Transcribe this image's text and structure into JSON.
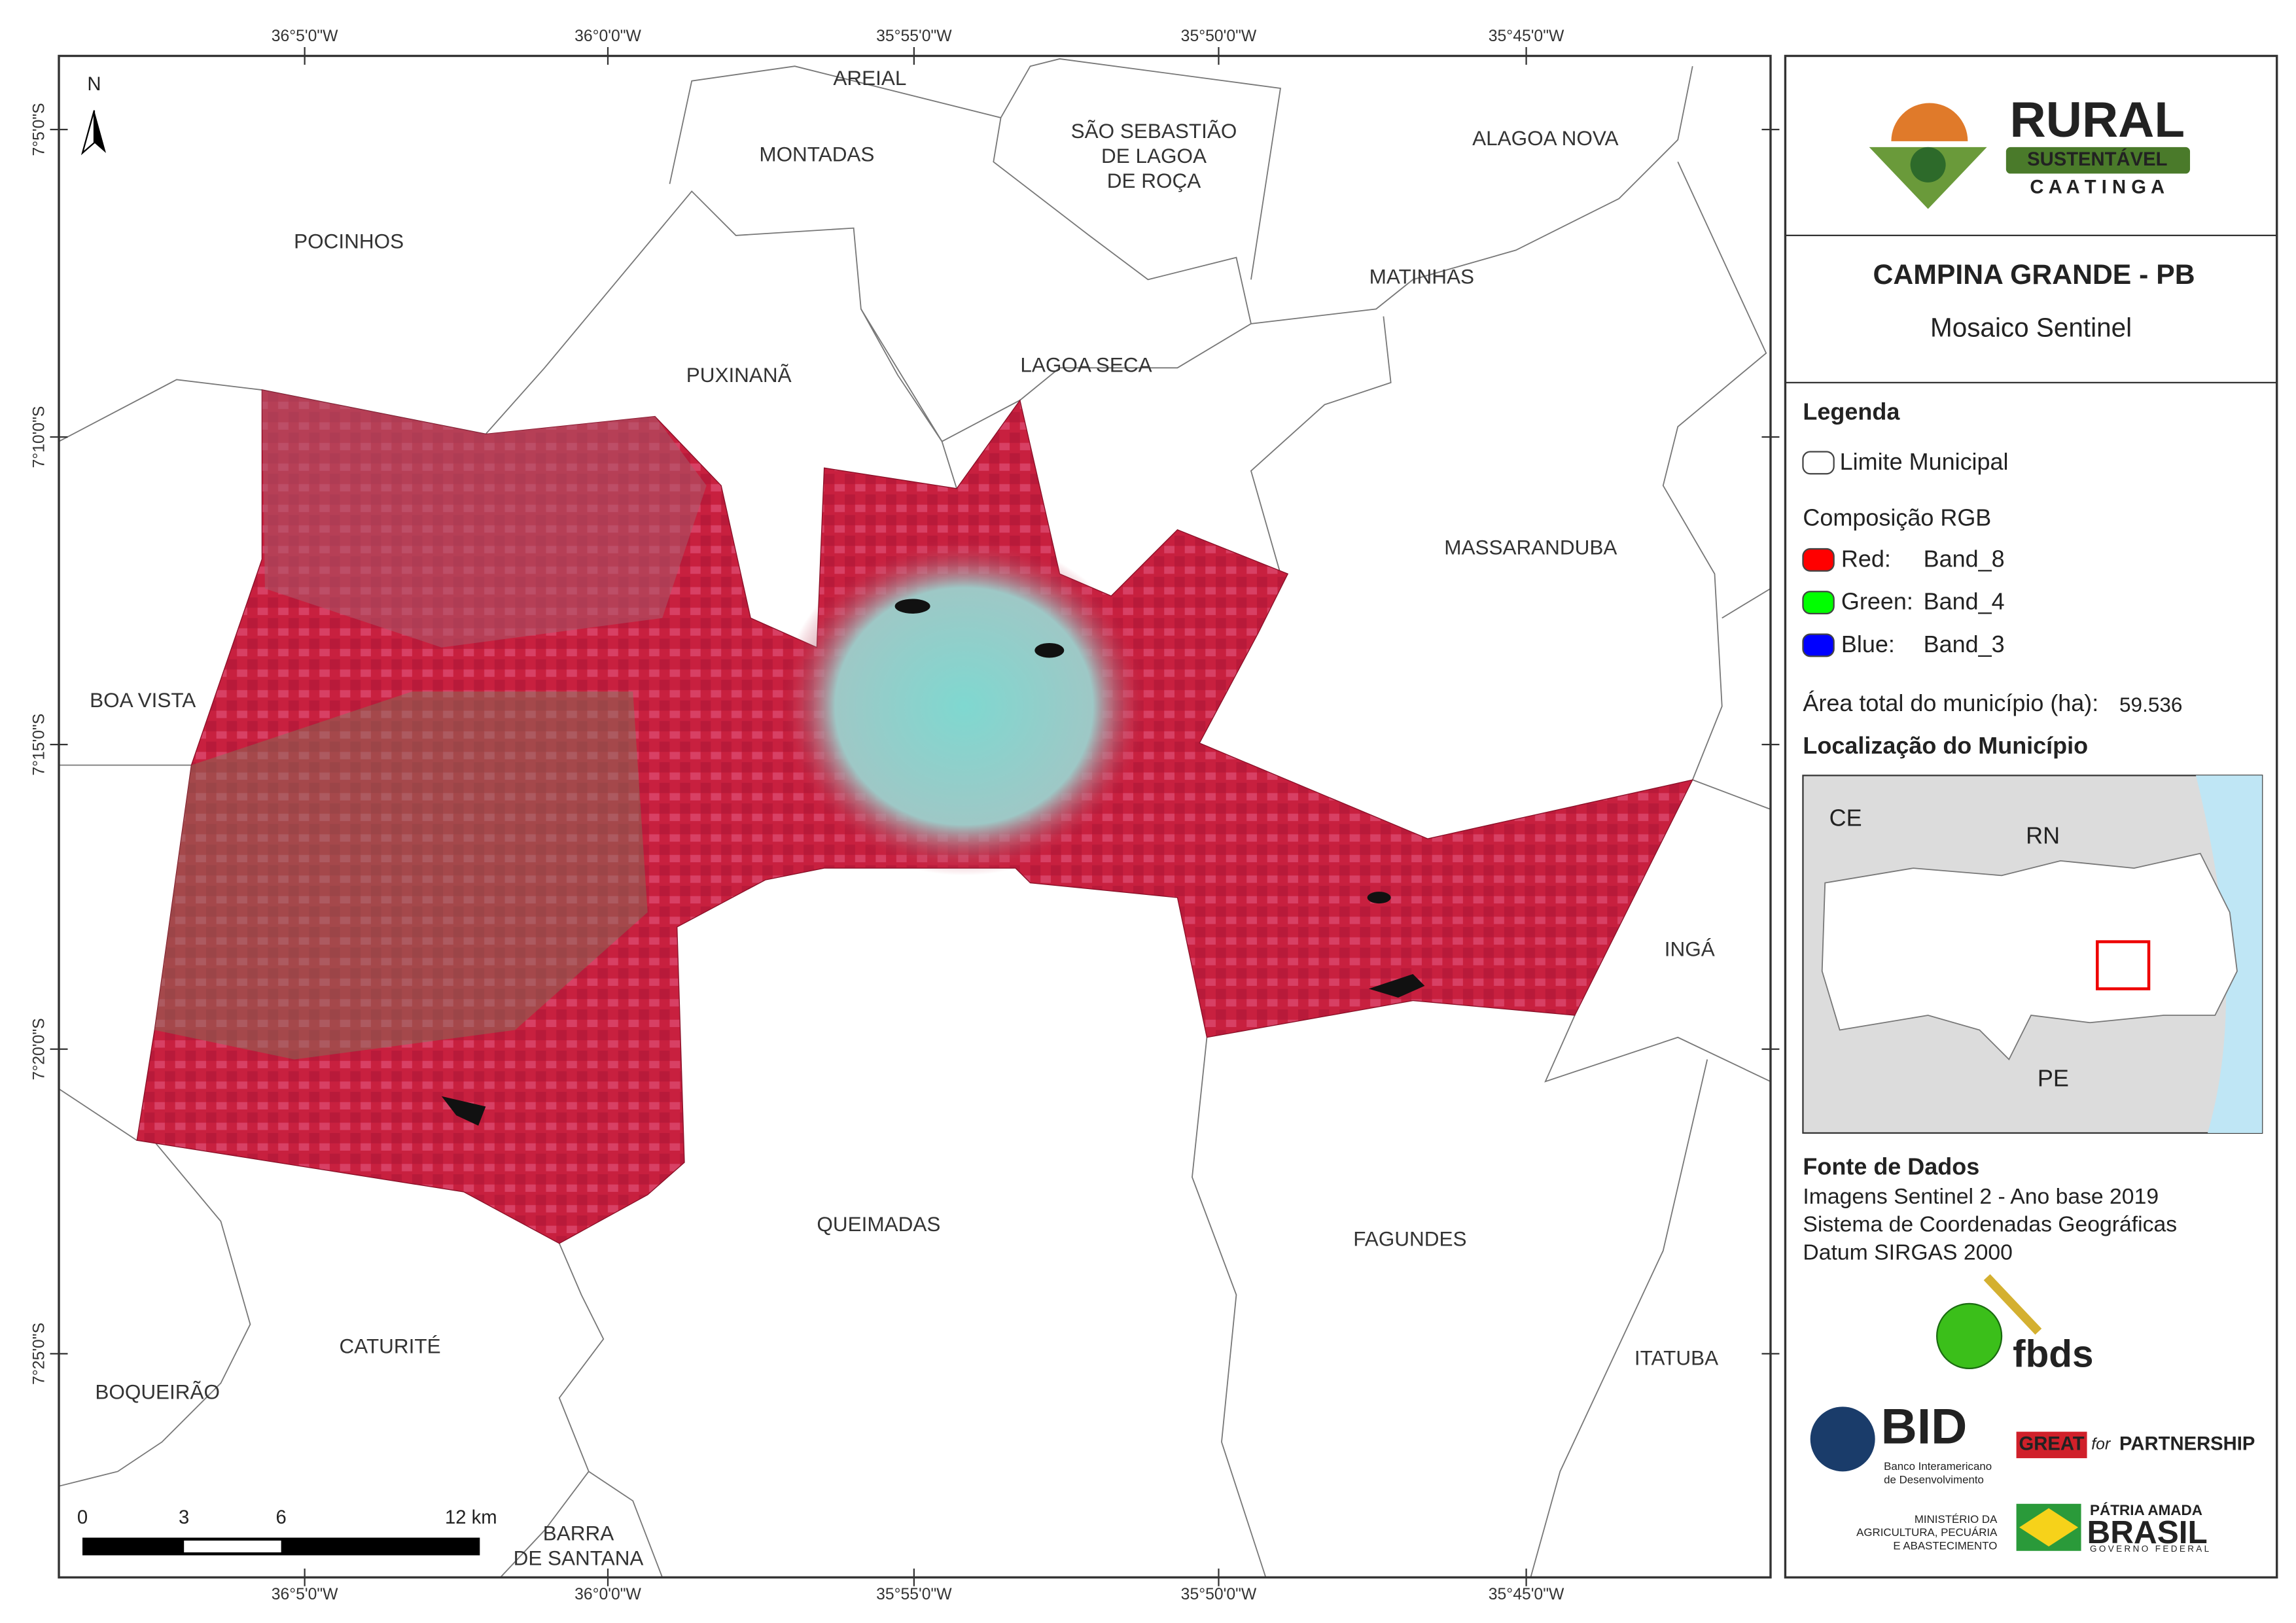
{
  "coordinates": {
    "top": [
      "36°5'0\"W",
      "36°0'0\"W",
      "35°55'0\"W",
      "35°50'0\"W",
      "35°45'0\"W"
    ],
    "bottom": [
      "36°5'0\"W",
      "36°0'0\"W",
      "35°55'0\"W",
      "35°50'0\"W",
      "35°45'0\"W"
    ],
    "left": [
      "7°5'0\"S",
      "7°10'0\"S",
      "7°15'0\"S",
      "7°20'0\"S",
      "7°25'0\"S"
    ]
  },
  "north": "N",
  "municipalities": [
    [
      "AREIAL"
    ],
    [
      "MONTADAS"
    ],
    [
      "SÃO SEBASTIÃO",
      "DE LAGOA",
      "DE ROÇA"
    ],
    [
      "ALAGOA NOVA"
    ],
    [
      "POCINHOS"
    ],
    [
      "MATINHAS"
    ],
    [
      "PUXINANÃ"
    ],
    [
      "LAGOA SECA"
    ],
    [
      "MASSARANDUBA"
    ],
    [
      "BOA VISTA"
    ],
    [
      "INGÁ"
    ],
    [
      "QUEIMADAS"
    ],
    [
      "FAGUNDES"
    ],
    [
      "CATURITÉ"
    ],
    [
      "ITATUBA"
    ],
    [
      "BOQUEIRÃO"
    ],
    [
      "BARRA",
      "DE SANTANA"
    ]
  ],
  "scale_bar": [
    "0",
    "3",
    "6",
    "12 km"
  ],
  "logo": {
    "rural": "RURAL",
    "sustentavel": "SUSTENTÁVEL",
    "caatinga": "C A A T I N G A"
  },
  "header": {
    "title": "CAMPINA GRANDE - PB",
    "subtitle": "Mosaico Sentinel"
  },
  "legend": {
    "title": "Legenda",
    "boundary": "Limite Municipal",
    "rgb_title": "Composição RGB",
    "rgb": [
      {
        "channel": "Red:",
        "band": "Band_8"
      },
      {
        "channel": "Green:",
        "band": "Band_4"
      },
      {
        "channel": "Blue:",
        "band": "Band_3"
      }
    ],
    "area_label": "Área total do município (ha):",
    "area_value": "59.536"
  },
  "location": {
    "title": "Localização do Município",
    "labels": [
      "CE",
      "RN",
      "PE"
    ]
  },
  "sources": {
    "title": "Fonte de Dados",
    "lines": [
      "Imagens Sentinel 2 - Ano base 2019",
      "Sistema de Coordenadas Geográficas",
      "Datum SIRGAS 2000"
    ]
  },
  "partners": {
    "fbds": "fbds",
    "bid": "BID",
    "bid_name": [
      "Banco Interamericano",
      "de Desenvolvimento"
    ],
    "great": "GREAT",
    "for": "for",
    "partnership": "PARTNERSHIP",
    "ministry": [
      "MINISTÉRIO DA",
      "AGRICULTURA, PECUÁRIA",
      "E ABASTECIMENTO"
    ],
    "patria": "PÁTRIA AMADA",
    "brasil": "BRASIL",
    "governo": "GOVERNO FEDERAL"
  }
}
